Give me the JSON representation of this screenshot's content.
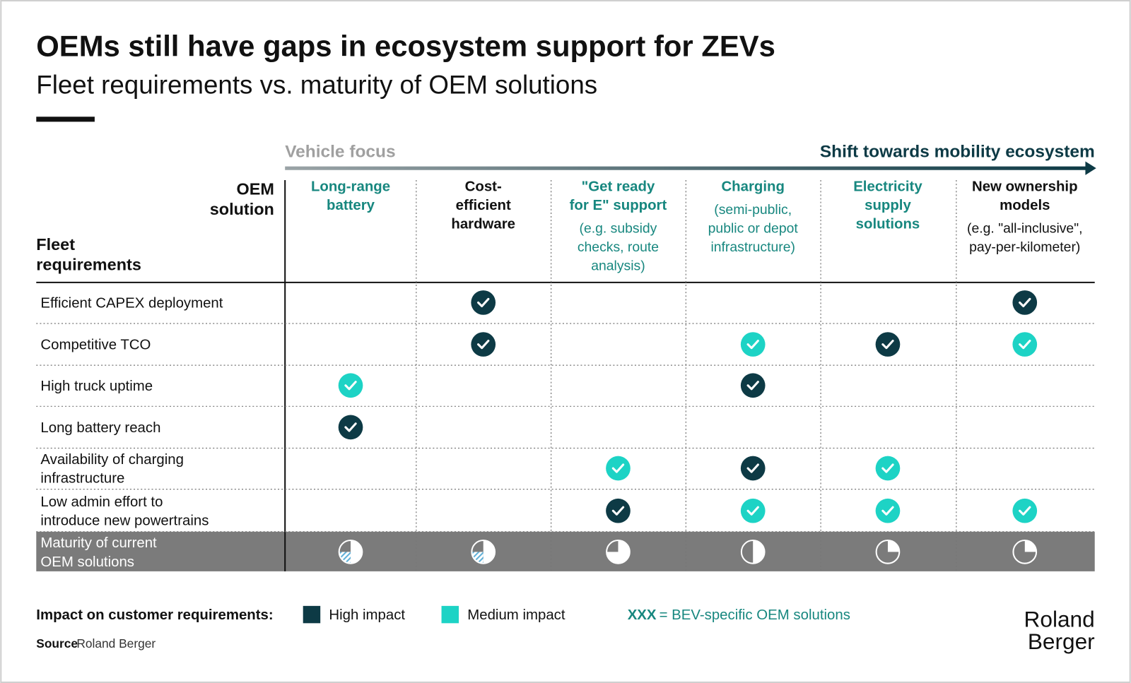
{
  "header": {
    "title": "OEMs still have gaps in ecosystem support for ZEVs",
    "subtitle": "Fleet requirements vs. maturity of OEM solutions"
  },
  "axis": {
    "left": "Vehicle focus",
    "right": "Shift towards mobility ecosystem"
  },
  "table": {
    "corner_top": [
      "OEM",
      "solution"
    ],
    "corner_bottom": [
      "Fleet",
      "requirements"
    ],
    "columns": [
      {
        "title": [
          "Long-range",
          "battery"
        ],
        "note": [],
        "bev": true
      },
      {
        "title": [
          "Cost-",
          "efficient",
          "hardware"
        ],
        "note": [],
        "bev": false
      },
      {
        "title": [
          "\"Get ready",
          "for E\" support"
        ],
        "note": [
          "(e.g. subsidy",
          "checks, route",
          "analysis)"
        ],
        "bev": true
      },
      {
        "title": [
          "Charging"
        ],
        "note": [
          "(semi-public,",
          "public or depot",
          "infrastructure)"
        ],
        "bev": true
      },
      {
        "title": [
          "Electricity",
          "supply",
          "solutions"
        ],
        "note": [],
        "bev": true
      },
      {
        "title": [
          "New ownership",
          "models"
        ],
        "note": [
          "(e.g. \"all-inclusive\",",
          "pay-per-kilometer)"
        ],
        "bev": false
      }
    ],
    "rows": [
      {
        "label": [
          "Efficient CAPEX deployment"
        ],
        "cells": [
          null,
          0,
          null,
          null,
          null,
          0
        ]
      },
      {
        "label": [
          "Competitive TCO"
        ],
        "cells": [
          null,
          0,
          null,
          1,
          0,
          1
        ]
      },
      {
        "label": [
          "High truck uptime"
        ],
        "cells": [
          1,
          null,
          null,
          0,
          null,
          null
        ]
      },
      {
        "label": [
          "Long battery reach"
        ],
        "cells": [
          0,
          null,
          null,
          null,
          null,
          null
        ]
      },
      {
        "label": [
          "Availability of charging",
          "infrastructure"
        ],
        "cells": [
          null,
          null,
          1,
          0,
          1,
          null
        ]
      },
      {
        "label": [
          "Low admin effort to",
          "introduce new powertrains"
        ],
        "cells": [
          null,
          null,
          0,
          1,
          1,
          1
        ]
      }
    ],
    "maturity": {
      "label": [
        "Maturity of current",
        "OEM solutions"
      ],
      "values": [
        0.5,
        0.5,
        0.75,
        0.5,
        0.25,
        0.25
      ],
      "potential": [
        0.25,
        0.25,
        0,
        0,
        0,
        0
      ]
    }
  },
  "legend": {
    "title": "Impact on customer requirements:",
    "items": [
      {
        "name": "High impact",
        "color": "#0d3a45"
      },
      {
        "name": "Medium impact",
        "color": "#1dd3c5"
      }
    ],
    "bev_code": "XXX",
    "bev_text": "= BEV-specific OEM solutions",
    "bev_color": "#17877f"
  },
  "source": {
    "label": "Source",
    "text": "Roland Berger"
  },
  "logo": [
    "Roland",
    "Berger"
  ]
}
